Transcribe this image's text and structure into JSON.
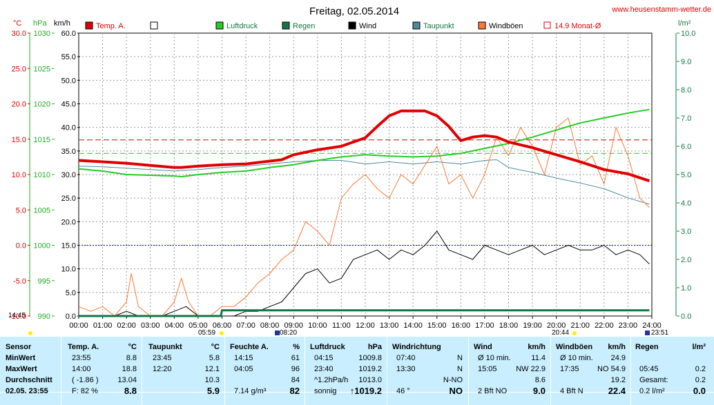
{
  "header": {
    "title": "Freitag, 02.05.2014",
    "website": "www.heusenstamm-wetter.de",
    "unit_temp": "°C",
    "unit_press": "hPa",
    "unit_wind": "km/h",
    "unit_rain": "l/m²"
  },
  "legend": [
    {
      "label": "Temp. A.",
      "color": "#e00000",
      "type": "fill"
    },
    {
      "label": "",
      "color": "#ffffff",
      "type": "fill"
    },
    {
      "label": "Luftdruck",
      "color": "#22cc22",
      "type": "fill"
    },
    {
      "label": "Regen",
      "color": "#117744",
      "type": "fill"
    },
    {
      "label": "Wind",
      "color": "#000000",
      "type": "fill"
    },
    {
      "label": "Taupunkt",
      "color": "#4a8a9a",
      "type": "fill"
    },
    {
      "label": "Windböen",
      "color": "#ff7733",
      "type": "fill"
    },
    {
      "label": "14.9 Monat-Ø",
      "color": "#e00000",
      "type": "outline"
    }
  ],
  "markers": {
    "sunrise": "05:59",
    "sunset": "20:44",
    "moonrise": "08:20",
    "moonset": "23:51",
    "left_time": "14:45"
  },
  "chart_data": {
    "type": "line",
    "title": "Freitag, 02.05.2014",
    "x_ticks": [
      "00:00",
      "01:00",
      "02:00",
      "03:00",
      "04:00",
      "05:00",
      "06:00",
      "07:00",
      "08:00",
      "09:00",
      "10:00",
      "11:00",
      "12:00",
      "13:00",
      "14:00",
      "15:00",
      "16:00",
      "17:00",
      "18:00",
      "19:00",
      "20:00",
      "21:00",
      "22:00",
      "23:00",
      "24:00"
    ],
    "axes": {
      "temp": {
        "unit": "°C",
        "ticks": [
          "30.0",
          "25.0",
          "20.0",
          "15.0",
          "10.0",
          "5.0",
          "0.0",
          "-5.0",
          "-10.0"
        ],
        "range": [
          -10,
          30
        ]
      },
      "pressure": {
        "unit": "hPa",
        "ticks": [
          "1030",
          "1025",
          "1020",
          "1015",
          "1010",
          "1005",
          "1000",
          "995",
          "990"
        ],
        "range": [
          990,
          1030
        ]
      },
      "wind": {
        "unit": "km/h",
        "ticks": [
          "60.0",
          "55.0",
          "50.0",
          "45.0",
          "40.0",
          "35.0",
          "30.0",
          "25.0",
          "20.0",
          "15.0",
          "10.0",
          "5.0",
          "0.0"
        ],
        "range": [
          0,
          60
        ]
      },
      "rain": {
        "unit": "l/m²",
        "ticks": [
          "10.0",
          "9.0",
          "8.0",
          "7.0",
          "6.0",
          "5.0",
          "4.0",
          "3.0",
          "2.0",
          "1.0",
          "0.0"
        ],
        "range": [
          0,
          10
        ]
      }
    },
    "reference_lines": [
      {
        "name": "14.9 Monat-Ø",
        "axis": "temp",
        "value": 14.9,
        "color": "#e00000"
      },
      {
        "axis": "pressure",
        "value": 1013,
        "color": "#22cc22"
      },
      {
        "axis": "temp",
        "value": 0,
        "color": "#0000ee"
      }
    ],
    "grid": true,
    "series": [
      {
        "name": "Temp. A.",
        "axis": "temp",
        "color": "#e00000",
        "width": 4,
        "x": [
          0,
          1,
          2,
          3,
          4,
          4.3,
          5,
          6,
          7,
          8,
          8.5,
          9,
          10,
          11,
          12,
          12.5,
          13,
          13.5,
          14,
          14.5,
          15,
          15.5,
          16,
          16.5,
          17,
          17.5,
          18,
          19,
          20,
          21,
          22,
          23,
          23.9
        ],
        "y": [
          12.0,
          11.8,
          11.6,
          11.3,
          11.0,
          11.0,
          11.2,
          11.4,
          11.5,
          11.9,
          12.1,
          12.8,
          13.5,
          14.0,
          15.2,
          16.8,
          18.3,
          19.0,
          19.0,
          19.0,
          18.3,
          16.8,
          14.8,
          15.3,
          15.5,
          15.3,
          14.6,
          13.8,
          12.8,
          11.8,
          10.7,
          10.1,
          9.1
        ]
      },
      {
        "name": "Luftdruck",
        "axis": "pressure",
        "color": "#22cc22",
        "width": 2,
        "x": [
          0,
          1,
          2,
          3,
          4,
          4.3,
          5,
          6,
          7,
          8,
          9,
          10,
          11,
          12,
          13,
          14,
          15,
          16,
          17,
          18,
          19,
          20,
          21,
          22,
          23,
          23.9
        ],
        "y": [
          1010.8,
          1010.5,
          1010.0,
          1009.9,
          1009.8,
          1009.7,
          1010.0,
          1010.3,
          1010.5,
          1011.0,
          1011.4,
          1012.0,
          1012.5,
          1012.8,
          1012.6,
          1012.5,
          1012.6,
          1013.0,
          1013.7,
          1014.4,
          1015.3,
          1016.3,
          1017.3,
          1018.0,
          1018.7,
          1019.2
        ]
      },
      {
        "name": "Taupunkt",
        "axis": "temp",
        "color": "#4a8a9a",
        "width": 1,
        "x": [
          0,
          1,
          2,
          3,
          4,
          5,
          6,
          7,
          8,
          9,
          10,
          11,
          12,
          13,
          14,
          15,
          16,
          17,
          17.5,
          18,
          19,
          20,
          21,
          22,
          23,
          23.9
        ],
        "y": [
          11.2,
          11.1,
          10.9,
          10.7,
          10.5,
          10.7,
          11.0,
          11.2,
          11.5,
          11.8,
          12.0,
          12.0,
          11.5,
          11.8,
          11.5,
          11.8,
          11.5,
          12.0,
          12.1,
          11.0,
          10.3,
          9.5,
          8.8,
          8.0,
          6.7,
          5.8
        ]
      },
      {
        "name": "Wind",
        "axis": "wind",
        "color": "#000000",
        "width": 1,
        "x": [
          0,
          0.5,
          1,
          1.5,
          2,
          2.5,
          3,
          3.5,
          4,
          4.5,
          5,
          5.5,
          6,
          6.5,
          7,
          7.5,
          8,
          8.5,
          9,
          9.5,
          10,
          10.5,
          11,
          11.5,
          12,
          12.5,
          13,
          13.5,
          14,
          14.5,
          15,
          15.5,
          16,
          16.5,
          17,
          17.5,
          18,
          18.5,
          19,
          19.5,
          20,
          20.5,
          21,
          21.5,
          22,
          22.5,
          23,
          23.5,
          23.9
        ],
        "y": [
          0,
          0,
          0,
          0,
          1,
          0,
          0,
          0,
          1,
          2,
          0,
          0,
          0,
          0,
          1,
          1,
          2,
          3,
          6,
          9,
          10,
          7,
          8,
          12,
          13,
          14,
          12,
          14,
          13,
          15,
          18,
          14,
          13,
          12,
          15,
          14,
          13,
          14,
          15,
          13,
          14,
          15,
          14,
          14,
          15,
          13,
          14,
          13,
          11
        ]
      },
      {
        "name": "Windböen",
        "axis": "wind",
        "color": "#ff7733",
        "width": 1,
        "x": [
          0,
          0.5,
          1,
          1.5,
          2,
          2.2,
          2.5,
          3,
          3.5,
          4,
          4.3,
          4.6,
          5,
          5.5,
          6,
          6.5,
          7,
          7.5,
          8,
          8.5,
          9,
          9.5,
          10,
          10.5,
          11,
          11.5,
          12,
          12.5,
          13,
          13.5,
          14,
          14.5,
          15,
          15.5,
          16,
          16.5,
          17,
          17.5,
          18,
          18.5,
          19,
          19.5,
          20,
          20.5,
          21,
          21.5,
          22,
          22.5,
          23,
          23.5,
          23.9
        ],
        "y": [
          2,
          1,
          2,
          0,
          3,
          9,
          2,
          0,
          0,
          3,
          8,
          3,
          0,
          0,
          2,
          2,
          4,
          7,
          9,
          12,
          14,
          20,
          18,
          15,
          25,
          28,
          30,
          27,
          25,
          30,
          28,
          32,
          36,
          28,
          30,
          25,
          30,
          38,
          34,
          40,
          36,
          30,
          40,
          42,
          32,
          34,
          28,
          40,
          34,
          25,
          23
        ]
      },
      {
        "name": "Regen",
        "axis": "rain",
        "color": "#117744",
        "width": 3,
        "x": [
          0,
          5.95,
          6.0,
          23.9
        ],
        "y": [
          0,
          0,
          0.2,
          0.2
        ]
      }
    ]
  },
  "table": {
    "headers": [
      {
        "label": "Sensor",
        "unit": ""
      },
      {
        "label": "Temp. A.",
        "unit": "°C"
      },
      {
        "label": "Taupunkt",
        "unit": "°C"
      },
      {
        "label": "Feuchte A.",
        "unit": "%"
      },
      {
        "label": "Luftdruck",
        "unit": "hPa"
      },
      {
        "label": "Windrichtung",
        "unit": ""
      },
      {
        "label": "Wind",
        "unit": "km/h"
      },
      {
        "label": "Windböen",
        "unit": "km/h"
      },
      {
        "label": "Regen",
        "unit": "l/m²"
      }
    ],
    "rows": [
      {
        "label": "MinWert",
        "cells": [
          [
            "23:55",
            "8.8"
          ],
          [
            "23:45",
            "5.8"
          ],
          [
            "14:15",
            "61"
          ],
          [
            "04:15",
            "1009.8"
          ],
          [
            "07:40",
            "N"
          ],
          [
            "Ø 10 min.",
            "11.4"
          ],
          [
            "Ø 10 min.",
            "24.9"
          ],
          [
            "",
            ""
          ]
        ]
      },
      {
        "label": "MaxWert",
        "cells": [
          [
            "14:00",
            "18.8"
          ],
          [
            "12:20",
            "12.1"
          ],
          [
            "04:05",
            "96"
          ],
          [
            "23:40",
            "1019.2"
          ],
          [
            "13:30",
            "N"
          ],
          [
            "15:05",
            "NW 22.9"
          ],
          [
            "17:35",
            "NO 54.9"
          ],
          [
            "05:45",
            "0.2"
          ]
        ]
      },
      {
        "label": "Durchschnitt",
        "cells": [
          [
            "( -1.86 )",
            "13.04"
          ],
          [
            "",
            "10.3"
          ],
          [
            "",
            "84"
          ],
          [
            "^1.2hPa/h",
            "1013.0"
          ],
          [
            "",
            "N-NO"
          ],
          [
            "",
            "8.6"
          ],
          [
            "",
            "19.2"
          ],
          [
            "Gesamt:",
            "0.2"
          ]
        ]
      }
    ],
    "current": {
      "label": "02.05. 23:55",
      "cells": [
        [
          "F: 82 %",
          "8.8"
        ],
        [
          "",
          "5.9"
        ],
        [
          "7.14 g/m³",
          "82"
        ],
        [
          "sonnig",
          "↑1019.2"
        ],
        [
          "46 °",
          "NO"
        ],
        [
          "2 Bft NO",
          "9.0"
        ],
        [
          "4 Bft N",
          "22.4"
        ],
        [
          "0.2 l/m²",
          "0.0"
        ]
      ]
    }
  }
}
